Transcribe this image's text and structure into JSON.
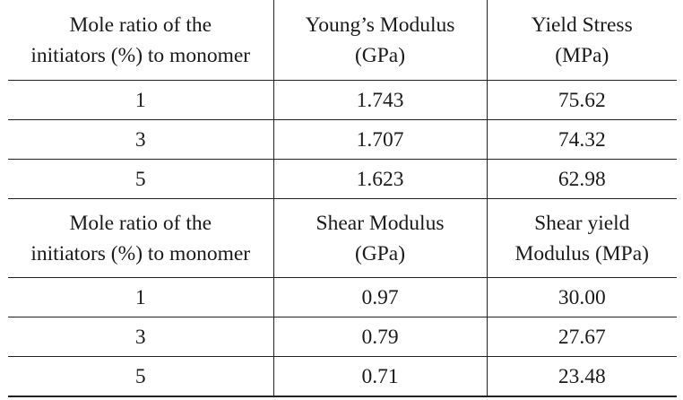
{
  "table1": {
    "header": [
      [
        "Mole ratio of the",
        "initiators (%) to monomer"
      ],
      [
        "Young’s Modulus",
        "(GPa)"
      ],
      [
        "Yield Stress",
        "(MPa)"
      ]
    ],
    "rows": [
      [
        "1",
        "1.743",
        "75.62"
      ],
      [
        "3",
        "1.707",
        "74.32"
      ],
      [
        "5",
        "1.623",
        "62.98"
      ]
    ]
  },
  "table2": {
    "header": [
      [
        "Mole ratio of the",
        "initiators (%) to monomer"
      ],
      [
        "Shear Modulus",
        "(GPa)"
      ],
      [
        "Shear yield",
        "Modulus (MPa)"
      ]
    ],
    "rows": [
      [
        "1",
        "0.97",
        "30.00"
      ],
      [
        "3",
        "0.79",
        "27.67"
      ],
      [
        "5",
        "0.71",
        "23.48"
      ]
    ]
  }
}
